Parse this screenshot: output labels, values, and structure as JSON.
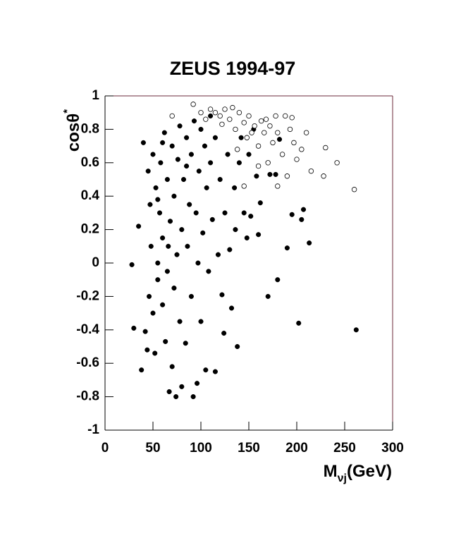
{
  "chart_data": {
    "type": "scatter",
    "title": "ZEUS 1994-97",
    "x_label": {
      "main": "M",
      "sub": "νj",
      "unit": "(GeV)"
    },
    "y_label": {
      "main": "cosθ",
      "sup": "*"
    },
    "xlim": [
      0,
      300
    ],
    "xticks": [
      0,
      50,
      100,
      150,
      200,
      250,
      300
    ],
    "ylim": [
      -1,
      1
    ],
    "yticks": [
      -1,
      -0.8,
      -0.6,
      -0.4,
      -0.2,
      0,
      0.2,
      0.4,
      0.6,
      0.8,
      1
    ],
    "series": [
      {
        "color": "#000000",
        "marker": "filled",
        "x": [
          28,
          30,
          35,
          38,
          40,
          42,
          44,
          45,
          46,
          47,
          48,
          50,
          50,
          52,
          53,
          55,
          55,
          57,
          58,
          60,
          60,
          62,
          63,
          65,
          65,
          67,
          68,
          70,
          70,
          72,
          72,
          74,
          75,
          76,
          78,
          78,
          80,
          80,
          82,
          84,
          85,
          86,
          88,
          90,
          90,
          92,
          93,
          95,
          96,
          97,
          98,
          100,
          100,
          102,
          104,
          105,
          106,
          108,
          110,
          110,
          112,
          115,
          115,
          118,
          120,
          122,
          124,
          125,
          128,
          130,
          132,
          135,
          136,
          138,
          140,
          142,
          145,
          148,
          150,
          152,
          155,
          158,
          160,
          162,
          170,
          172,
          178,
          180,
          182,
          190,
          195,
          202,
          205,
          207,
          213,
          262,
          60,
          66,
          85,
          55
        ],
        "y": [
          -0.01,
          -0.39,
          0.22,
          -0.64,
          0.72,
          -0.41,
          -0.52,
          0.55,
          -0.2,
          0.35,
          0.1,
          -0.3,
          0.65,
          -0.54,
          0.45,
          0.0,
          -0.1,
          0.3,
          0.6,
          -0.25,
          0.15,
          0.78,
          -0.47,
          0.5,
          -0.05,
          -0.77,
          0.25,
          0.7,
          -0.62,
          0.4,
          -0.15,
          -0.8,
          0.05,
          0.62,
          0.82,
          -0.35,
          0.2,
          -0.74,
          0.5,
          -0.48,
          0.75,
          0.1,
          0.35,
          -0.2,
          0.65,
          -0.8,
          0.85,
          0.3,
          -0.72,
          0.0,
          0.55,
          -0.35,
          0.8,
          0.18,
          0.7,
          -0.64,
          0.45,
          -0.05,
          0.6,
          0.88,
          0.26,
          -0.65,
          0.75,
          0.05,
          0.5,
          -0.19,
          -0.42,
          0.3,
          0.65,
          0.08,
          -0.27,
          0.45,
          0.2,
          -0.5,
          0.6,
          0.75,
          0.3,
          0.15,
          0.65,
          0.28,
          0.8,
          0.52,
          0.17,
          0.36,
          -0.2,
          0.53,
          0.53,
          -0.1,
          0.74,
          0.09,
          0.29,
          -0.36,
          0.26,
          0.32,
          0.12,
          -0.4,
          0.72,
          0.1,
          0.58,
          0.38
        ]
      },
      {
        "color": "#000000",
        "marker": "open",
        "x": [
          70,
          92,
          100,
          105,
          110,
          115,
          120,
          125,
          130,
          133,
          136,
          140,
          145,
          148,
          150,
          153,
          156,
          160,
          163,
          166,
          168,
          172,
          175,
          178,
          180,
          185,
          188,
          190,
          193,
          197,
          200,
          205,
          210,
          215,
          228,
          230,
          242,
          260,
          180,
          145,
          160,
          195,
          122,
          138,
          170
        ],
        "y": [
          0.88,
          0.95,
          0.9,
          0.86,
          0.92,
          0.9,
          0.88,
          0.92,
          0.86,
          0.93,
          0.8,
          0.9,
          0.84,
          0.75,
          0.88,
          0.78,
          0.82,
          0.7,
          0.85,
          0.78,
          0.86,
          0.82,
          0.72,
          0.88,
          0.78,
          0.65,
          0.88,
          0.52,
          0.8,
          0.72,
          0.62,
          0.68,
          0.78,
          0.55,
          0.52,
          0.69,
          0.6,
          0.44,
          0.46,
          0.46,
          0.58,
          0.87,
          0.83,
          0.68,
          0.6
        ]
      }
    ]
  }
}
